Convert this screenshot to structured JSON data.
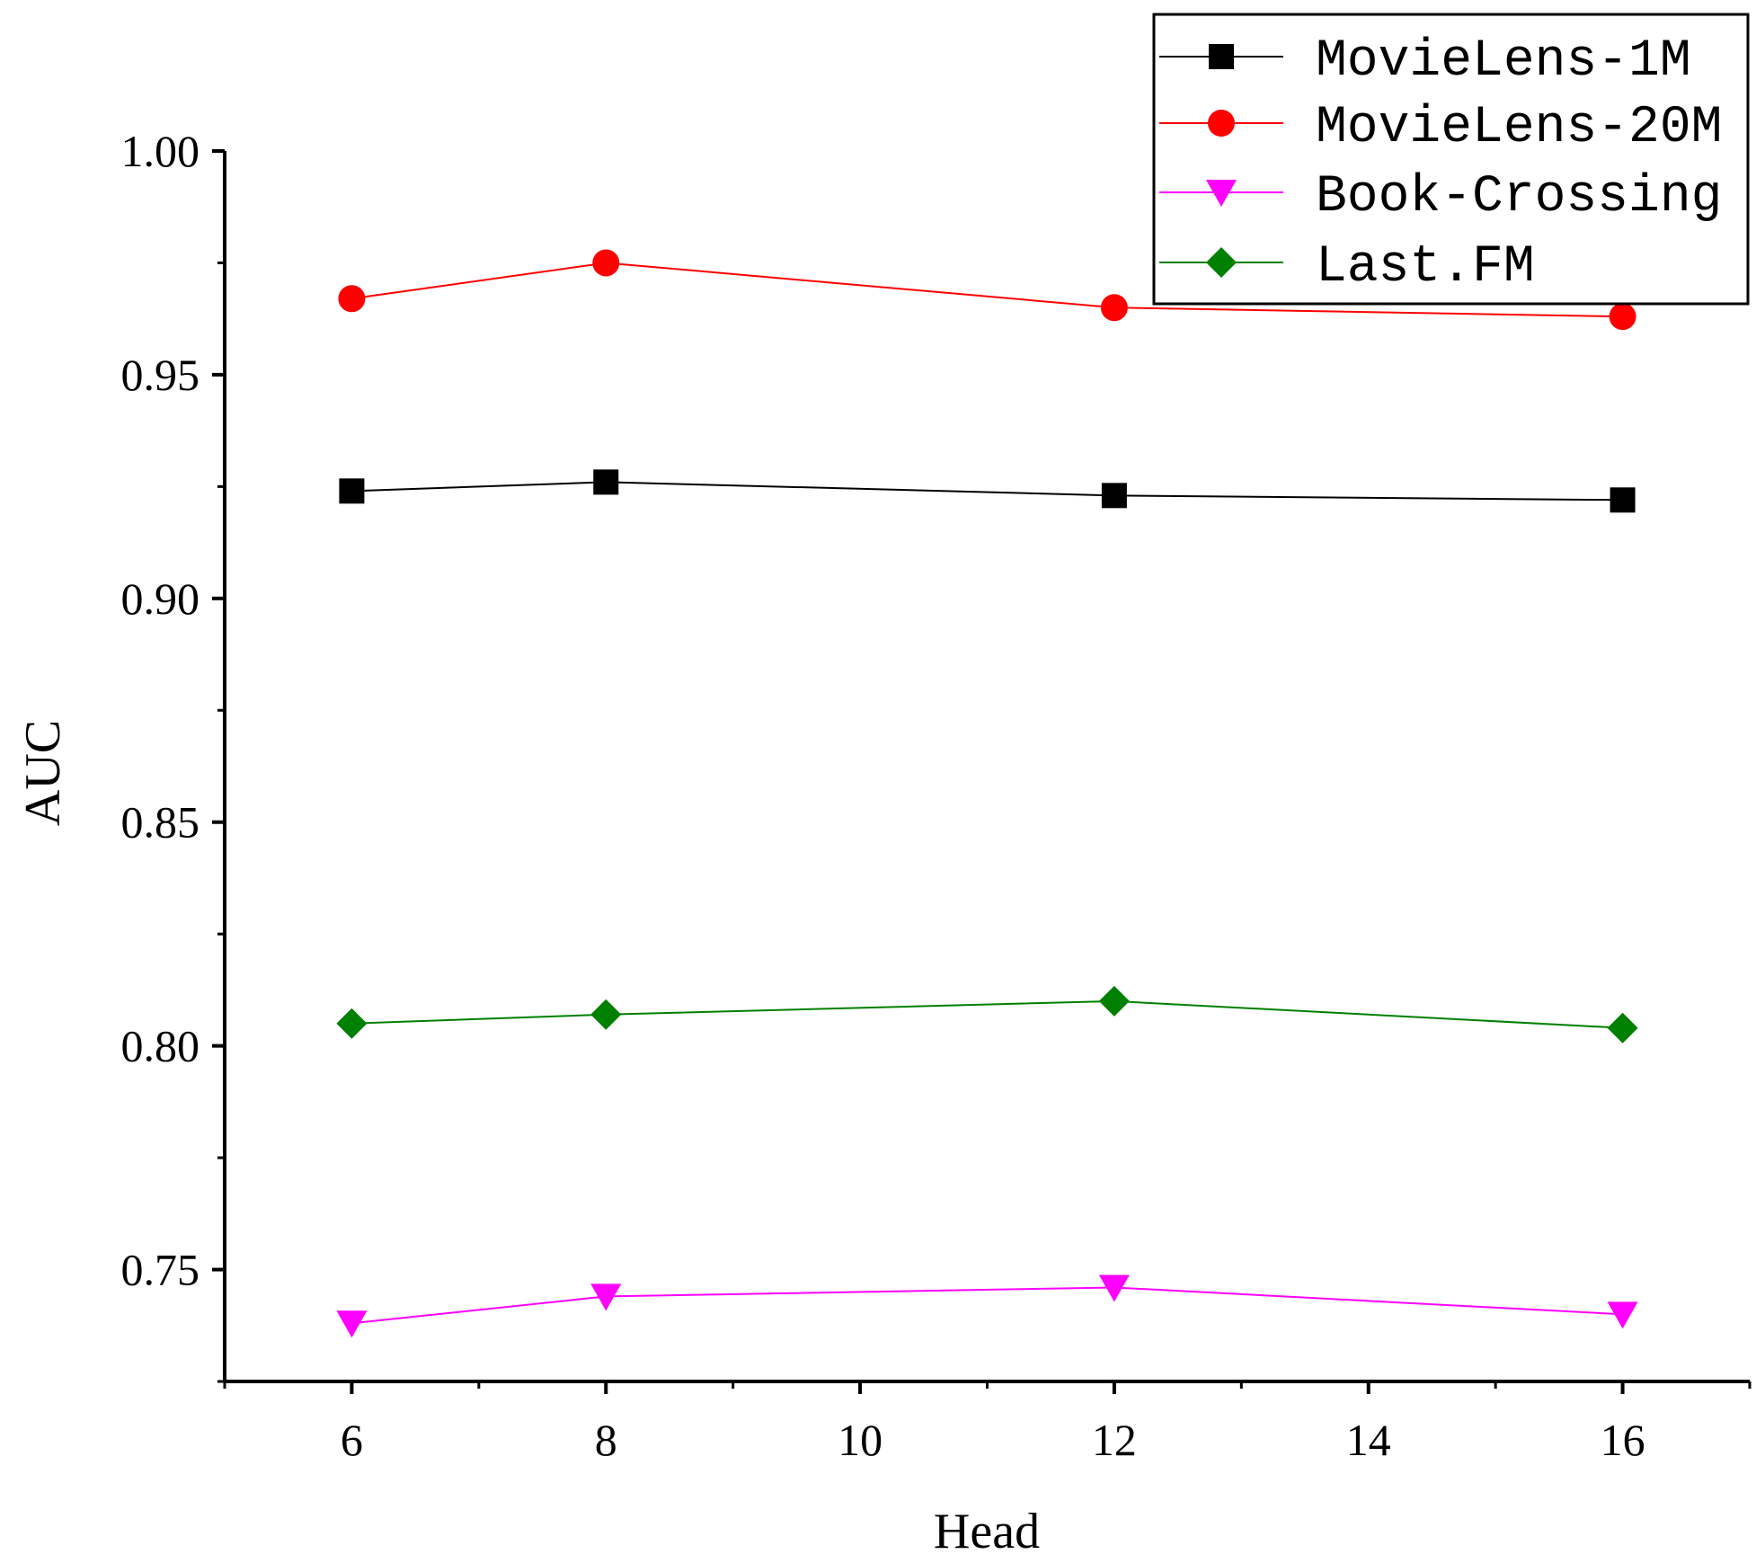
{
  "chart_data": {
    "type": "line",
    "title": "",
    "xlabel": "Head",
    "ylabel": "AUC",
    "x": [
      6,
      8,
      12,
      16
    ],
    "xlim": [
      5,
      17
    ],
    "ylim": [
      0.725,
      1.0
    ],
    "x_ticks": [
      6,
      8,
      10,
      12,
      14,
      16
    ],
    "x_tick_labels": [
      "6",
      "8",
      "10",
      "12",
      "14",
      "16"
    ],
    "y_ticks": [
      0.75,
      0.8,
      0.85,
      0.9,
      0.95,
      1.0
    ],
    "y_tick_labels": [
      "0.75",
      "0.80",
      "0.85",
      "0.90",
      "0.95",
      "1.00"
    ],
    "grid": false,
    "legend_position": "top-right",
    "series": [
      {
        "name": "MovieLens-1M",
        "color": "#000000",
        "marker": "square",
        "values": [
          0.924,
          0.926,
          0.923,
          0.922
        ]
      },
      {
        "name": "MovieLens-20M",
        "color": "#ff0000",
        "marker": "circle",
        "values": [
          0.967,
          0.975,
          0.965,
          0.963
        ]
      },
      {
        "name": "Book-Crossing",
        "color": "#ff00ff",
        "marker": "triangle-down",
        "values": [
          0.738,
          0.744,
          0.746,
          0.74
        ]
      },
      {
        "name": "Last.FM",
        "color": "#008000",
        "marker": "diamond",
        "values": [
          0.805,
          0.807,
          0.81,
          0.804
        ]
      }
    ]
  }
}
